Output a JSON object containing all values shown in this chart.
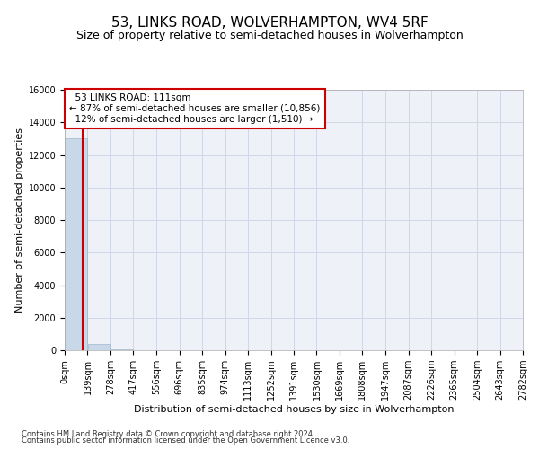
{
  "title": "53, LINKS ROAD, WOLVERHAMPTON, WV4 5RF",
  "subtitle": "Size of property relative to semi-detached houses in Wolverhampton",
  "xlabel": "Distribution of semi-detached houses by size in Wolverhampton",
  "ylabel": "Number of semi-detached properties",
  "footnote1": "Contains HM Land Registry data © Crown copyright and database right 2024.",
  "footnote2": "Contains public sector information licensed under the Open Government Licence v3.0.",
  "bin_edges": [
    0,
    139,
    278,
    417,
    556,
    696,
    835,
    974,
    1113,
    1252,
    1391,
    1530,
    1669,
    1808,
    1947,
    2087,
    2226,
    2365,
    2504,
    2643,
    2782
  ],
  "bar_heights": [
    13000,
    390,
    50,
    20,
    15,
    10,
    8,
    5,
    4,
    3,
    2,
    2,
    1,
    1,
    1,
    1,
    0,
    0,
    0,
    0
  ],
  "bar_color": "#c8d8e8",
  "bar_edgecolor": "#a0b8cc",
  "property_sqm": 111,
  "property_line_color": "#cc0000",
  "property_label": "53 LINKS ROAD: 111sqm",
  "annotation_smaller": "← 87% of semi-detached houses are smaller (10,856)",
  "annotation_larger": "12% of semi-detached houses are larger (1,510) →",
  "annotation_box_color": "#ffffff",
  "annotation_box_edgecolor": "#cc0000",
  "ylim": [
    0,
    16000
  ],
  "yticks": [
    0,
    2000,
    4000,
    6000,
    8000,
    10000,
    12000,
    14000,
    16000
  ],
  "grid_color": "#d0d8e8",
  "background_color": "#eef2f8",
  "title_fontsize": 11,
  "subtitle_fontsize": 9,
  "ylabel_fontsize": 8,
  "xlabel_fontsize": 8,
  "tick_fontsize": 7,
  "annotation_fontsize": 7.5,
  "footnote_fontsize": 6
}
